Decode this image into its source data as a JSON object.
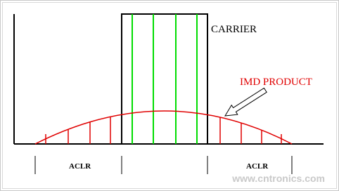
{
  "labels": {
    "carrier": "CARRIER",
    "imd_product": "IMD PRODUCT",
    "aclr_left": "ACLR",
    "aclr_right": "ACLR"
  },
  "watermark": "www.cntronics.com"
}
